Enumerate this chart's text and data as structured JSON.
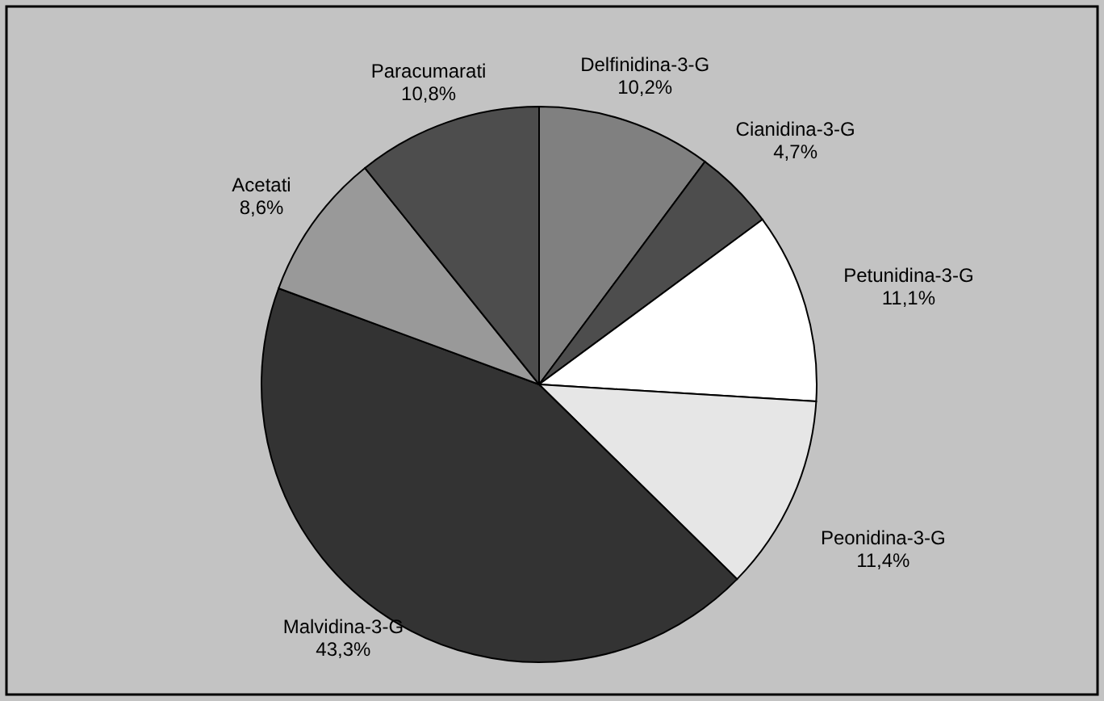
{
  "chart_data": {
    "type": "pie",
    "categories": [
      "Delfinidina-3-G",
      "Cianidina-3-G",
      "Petunidina-3-G",
      "Peonidina-3-G",
      "Malvidina-3-G",
      "Acetati",
      "Paracumarati"
    ],
    "values": [
      10.2,
      4.7,
      11.1,
      11.4,
      43.3,
      8.6,
      10.8
    ],
    "colors": [
      "#808080",
      "#4d4d4d",
      "#ffffff",
      "#e6e6e6",
      "#333333",
      "#999999",
      "#4d4d4d"
    ],
    "value_labels": [
      "10,2%",
      "4,7%",
      "11,1%",
      "11,4%",
      "43,3%",
      "8,6%",
      "10,8%"
    ]
  }
}
